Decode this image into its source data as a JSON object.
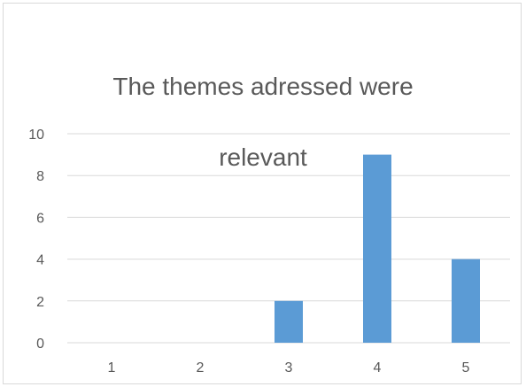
{
  "chart_data": {
    "type": "bar",
    "title": "The themes adressed were relevant",
    "title_lines": [
      "The themes adressed were",
      "relevant"
    ],
    "categories": [
      "1",
      "2",
      "3",
      "4",
      "5"
    ],
    "values": [
      0,
      0,
      2,
      9,
      4
    ],
    "xlabel": "",
    "ylabel": "",
    "ylim": [
      0,
      10
    ],
    "yticks": [
      0,
      2,
      4,
      6,
      8,
      10
    ],
    "grid": true,
    "legend": "none",
    "bar_color": "#5b9bd5",
    "grid_color": "#d9d9d9"
  }
}
